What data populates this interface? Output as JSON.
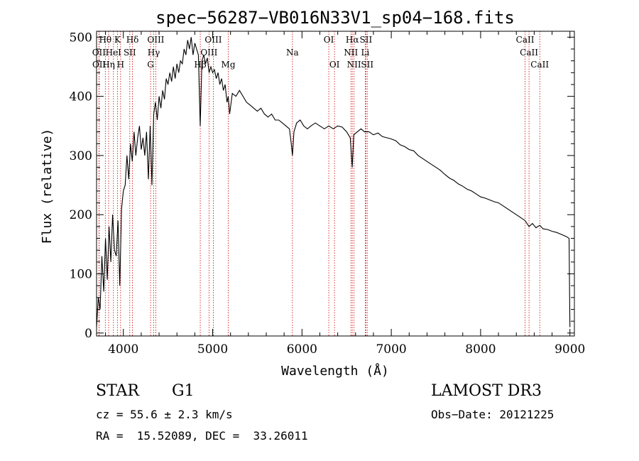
{
  "chart_data": {
    "type": "line",
    "title": "spec−56287−VB016N33V1_sp04−168.fits",
    "xlabel": "Wavelength (Å)",
    "ylabel": "Flux (relative)",
    "xlim": [
      3700,
      9050
    ],
    "ylim": [
      -5,
      510
    ],
    "xticks": [
      4000,
      5000,
      6000,
      7000,
      8000,
      9000
    ],
    "yticks": [
      0,
      100,
      200,
      300,
      400,
      500
    ],
    "grid": false,
    "series": [
      {
        "name": "flux",
        "x": [
          3700,
          3720,
          3740,
          3760,
          3780,
          3800,
          3820,
          3840,
          3860,
          3880,
          3900,
          3920,
          3940,
          3960,
          3980,
          4000,
          4020,
          4040,
          4060,
          4080,
          4100,
          4120,
          4140,
          4160,
          4180,
          4200,
          4220,
          4240,
          4260,
          4280,
          4300,
          4320,
          4340,
          4360,
          4380,
          4400,
          4420,
          4440,
          4460,
          4480,
          4500,
          4520,
          4540,
          4560,
          4580,
          4600,
          4620,
          4640,
          4660,
          4680,
          4700,
          4720,
          4740,
          4760,
          4780,
          4800,
          4820,
          4840,
          4861,
          4880,
          4900,
          4920,
          4940,
          4960,
          4980,
          5000,
          5020,
          5040,
          5060,
          5080,
          5100,
          5120,
          5140,
          5160,
          5175,
          5190,
          5220,
          5260,
          5300,
          5340,
          5380,
          5420,
          5460,
          5500,
          5540,
          5580,
          5620,
          5660,
          5700,
          5740,
          5780,
          5820,
          5860,
          5880,
          5893,
          5910,
          5940,
          5980,
          6020,
          6060,
          6100,
          6150,
          6200,
          6250,
          6300,
          6350,
          6400,
          6450,
          6500,
          6540,
          6563,
          6580,
          6620,
          6660,
          6700,
          6750,
          6800,
          6850,
          6900,
          6950,
          7000,
          7050,
          7100,
          7150,
          7200,
          7250,
          7300,
          7350,
          7400,
          7450,
          7500,
          7550,
          7600,
          7650,
          7700,
          7750,
          7800,
          7850,
          7900,
          7950,
          8000,
          8050,
          8100,
          8150,
          8200,
          8250,
          8300,
          8350,
          8400,
          8450,
          8498,
          8542,
          8580,
          8620,
          8662,
          8700,
          8750,
          8800,
          8850,
          8900,
          8960,
          8990,
          9000
        ],
        "values": [
          10,
          60,
          40,
          130,
          70,
          160,
          90,
          180,
          120,
          200,
          140,
          130,
          190,
          80,
          210,
          240,
          250,
          300,
          260,
          320,
          290,
          340,
          300,
          330,
          350,
          310,
          330,
          300,
          340,
          260,
          350,
          250,
          370,
          390,
          360,
          400,
          380,
          410,
          395,
          430,
          420,
          440,
          425,
          450,
          430,
          455,
          440,
          460,
          455,
          480,
          470,
          495,
          480,
          500,
          470,
          490,
          480,
          470,
          350,
          460,
          470,
          455,
          465,
          440,
          450,
          440,
          445,
          430,
          440,
          420,
          430,
          410,
          420,
          390,
          400,
          370,
          405,
          400,
          410,
          400,
          390,
          385,
          380,
          375,
          380,
          370,
          365,
          370,
          360,
          360,
          355,
          350,
          345,
          320,
          300,
          340,
          355,
          360,
          350,
          345,
          350,
          355,
          350,
          345,
          350,
          345,
          350,
          348,
          340,
          330,
          280,
          335,
          340,
          345,
          340,
          340,
          335,
          338,
          332,
          330,
          328,
          325,
          318,
          315,
          310,
          308,
          300,
          295,
          290,
          285,
          280,
          275,
          268,
          262,
          258,
          252,
          248,
          243,
          240,
          235,
          230,
          228,
          225,
          222,
          220,
          215,
          210,
          205,
          200,
          195,
          190,
          180,
          185,
          178,
          182,
          176,
          175,
          172,
          170,
          167,
          163,
          160,
          10
        ]
      }
    ],
    "line_markers": [
      {
        "name": "Hθ",
        "wavelength": 3798,
        "row": 1
      },
      {
        "name": "OII",
        "wavelength": 3727,
        "row": 2
      },
      {
        "name": "OII",
        "wavelength": 3729,
        "row": 3
      },
      {
        "name": "HeI",
        "wavelength": 3889,
        "row": 2
      },
      {
        "name": "Hη",
        "wavelength": 3835,
        "row": 3
      },
      {
        "name": "K",
        "wavelength": 3934,
        "row": 1
      },
      {
        "name": "H",
        "wavelength": 3969,
        "row": 3
      },
      {
        "name": "SII",
        "wavelength": 4072,
        "row": 2
      },
      {
        "name": "Hδ",
        "wavelength": 4102,
        "row": 1
      },
      {
        "name": "OIII",
        "wavelength": 4363,
        "row": 1
      },
      {
        "name": "Hγ",
        "wavelength": 4340,
        "row": 2
      },
      {
        "name": "G",
        "wavelength": 4305,
        "row": 3
      },
      {
        "name": "Hβ",
        "wavelength": 4861,
        "row": 3
      },
      {
        "name": "OIII",
        "wavelength": 4959,
        "row": 2
      },
      {
        "name": "OIII",
        "wavelength": 5007,
        "row": 1
      },
      {
        "name": "Mg",
        "wavelength": 5175,
        "row": 3
      },
      {
        "name": "Na",
        "wavelength": 5893,
        "row": 2
      },
      {
        "name": "OI",
        "wavelength": 6300,
        "row": 1
      },
      {
        "name": "OI",
        "wavelength": 6364,
        "row": 3
      },
      {
        "name": "Hα",
        "wavelength": 6563,
        "row": 1
      },
      {
        "name": "NII",
        "wavelength": 6548,
        "row": 2
      },
      {
        "name": "NII",
        "wavelength": 6583,
        "row": 3
      },
      {
        "name": "SII",
        "wavelength": 6716,
        "row": 1
      },
      {
        "name": "Li",
        "wavelength": 6708,
        "row": 2
      },
      {
        "name": "SII",
        "wavelength": 6731,
        "row": 3
      },
      {
        "name": "CaII",
        "wavelength": 8498,
        "row": 1
      },
      {
        "name": "CaII",
        "wavelength": 8542,
        "row": 2
      },
      {
        "name": "CaII",
        "wavelength": 8662,
        "row": 3
      }
    ],
    "line_color": "#000000",
    "marker_color": "#cc0000"
  },
  "info": {
    "class": "STAR",
    "subclass": "G1",
    "survey": "LAMOST DR3",
    "cz": "cz = 55.6 ± 2.3 km/s",
    "obs_date": "Obs−Date: 20121225",
    "coords": "RA =  15.52089, DEC =  33.26011"
  }
}
